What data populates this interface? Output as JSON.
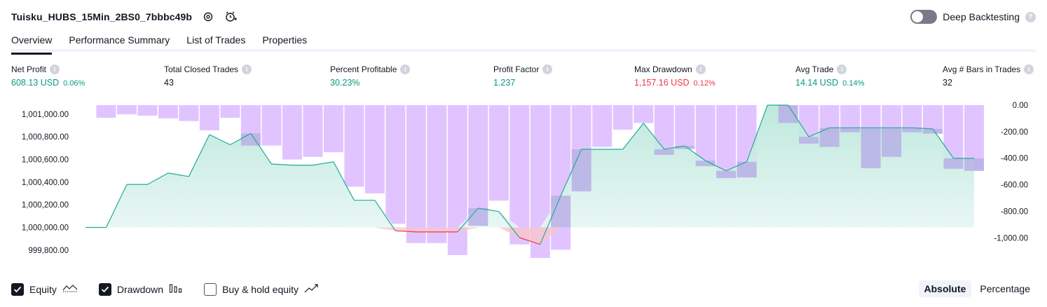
{
  "strategy": {
    "name": "Tuisku_HUBS_15Min_2BS0_7bbbc49b"
  },
  "deep_backtesting": {
    "label": "Deep Backtesting",
    "enabled": false,
    "help": "?"
  },
  "tabs": [
    {
      "label": "Overview",
      "active": true
    },
    {
      "label": "Performance Summary",
      "active": false
    },
    {
      "label": "List of Trades",
      "active": false
    },
    {
      "label": "Properties",
      "active": false
    }
  ],
  "metrics": [
    {
      "title": "Net Profit",
      "value": "608.13 USD",
      "sub": "0.06%",
      "tone": "pos"
    },
    {
      "title": "Total Closed Trades",
      "value": "43",
      "sub": "",
      "tone": "neu"
    },
    {
      "title": "Percent Profitable",
      "value": "30.23%",
      "sub": "",
      "tone": "pos"
    },
    {
      "title": "Profit Factor",
      "value": "1.237",
      "sub": "",
      "tone": "pos"
    },
    {
      "title": "Max Drawdown",
      "value": "1,157.16 USD",
      "sub": "0.12%",
      "tone": "neg"
    },
    {
      "title": "Avg Trade",
      "value": "14.14 USD",
      "sub": "0.14%",
      "tone": "pos"
    },
    {
      "title": "Avg # Bars in Trades",
      "value": "32",
      "sub": "",
      "tone": "neu"
    }
  ],
  "legend": [
    {
      "label": "Equity",
      "checked": true,
      "icon": "equity-line-icon"
    },
    {
      "label": "Drawdown",
      "checked": true,
      "icon": "drawdown-bars-icon"
    },
    {
      "label": "Buy & hold equity",
      "checked": false,
      "icon": "buy-hold-line-icon"
    }
  ],
  "modes": [
    {
      "label": "Absolute",
      "active": true
    },
    {
      "label": "Percentage",
      "active": false
    }
  ],
  "colors": {
    "positive": "#089981",
    "negative": "#f23645",
    "equity_line": "#22ab94",
    "equity_fill": "#cfeee7",
    "drawdown_bar": "#e1c4ff",
    "drawdown_overlap": "#b8b0e6"
  },
  "chart_data": {
    "type": "area",
    "x": [
      1,
      2,
      3,
      4,
      5,
      6,
      7,
      8,
      9,
      10,
      11,
      12,
      13,
      14,
      15,
      16,
      17,
      18,
      19,
      20,
      21,
      22,
      23,
      24,
      25,
      26,
      27,
      28,
      29,
      30,
      31,
      32,
      33,
      34,
      35,
      36,
      37,
      38,
      39,
      40,
      41,
      42,
      43,
      44
    ],
    "x_ticks": [
      1,
      4,
      7,
      10,
      13,
      16,
      19,
      22,
      25,
      28,
      31,
      34,
      37,
      40,
      43
    ],
    "series": [
      {
        "axis": "left",
        "values": [
          1000000,
          1000000,
          1000380,
          1000380,
          1000480,
          1000450,
          1000820,
          1000730,
          1000830,
          1000560,
          1000550,
          1000550,
          1000580,
          1000240,
          1000240,
          999970,
          999960,
          999960,
          999960,
          1000170,
          1000140,
          999910,
          999850,
          1000280,
          1000690,
          1000690,
          1000690,
          1000920,
          1000690,
          1000720,
          1000590,
          1000500,
          1000580,
          1001080,
          1001080,
          1000800,
          1000880,
          1000880,
          1000880,
          1000880,
          1000880,
          1000870,
          1000610,
          1000610
        ]
      },
      {
        "axis": "right",
        "values": [
          0,
          -95,
          -70,
          -80,
          -100,
          -120,
          -190,
          -95,
          -305,
          -305,
          -410,
          -390,
          -355,
          -615,
          -665,
          -895,
          -1040,
          -1040,
          -1130,
          -910,
          -720,
          -1050,
          -1157.16,
          -1090,
          -650,
          -315,
          -185,
          -135,
          -375,
          -330,
          -460,
          -550,
          -545,
          0,
          -135,
          -290,
          -315,
          -205,
          -475,
          -390,
          -205,
          -215,
          -480,
          -495
        ]
      }
    ],
    "y_left_ticks": [
      "1,001,000.00",
      "1,000,800.00",
      "1,000,600.00",
      "1,000,400.00",
      "1,000,200.00",
      "1,000,000.00",
      "999,800.00"
    ],
    "y_left_range": [
      999780,
      1001080
    ],
    "y_right_ticks": [
      "0.00",
      "-200.00",
      "-400.00",
      "-600.00",
      "-800.00",
      "-1,000.00"
    ],
    "y_right_range": [
      -1157.16,
      0
    ]
  }
}
